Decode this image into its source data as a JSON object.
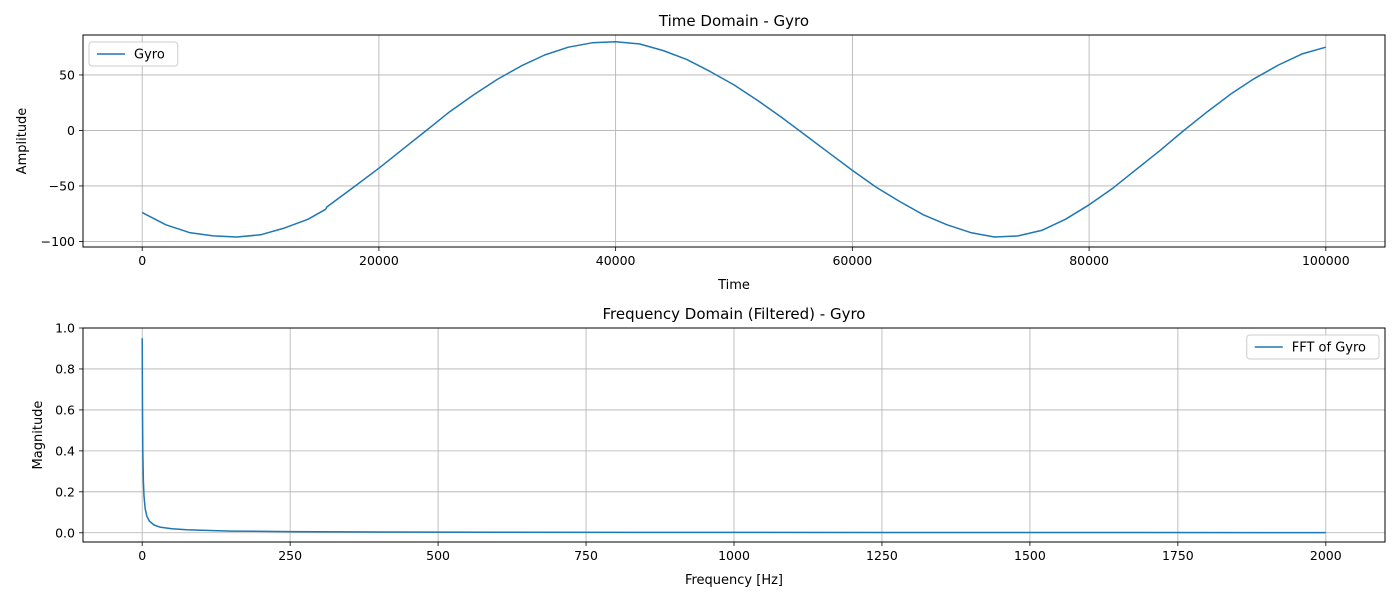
{
  "chart_data": [
    {
      "type": "line",
      "title": "Time Domain - Gyro",
      "xlabel": "Time",
      "ylabel": "Amplitude",
      "xlim": [
        -5000,
        105000
      ],
      "ylim": [
        -105,
        86
      ],
      "xticks": [
        0,
        20000,
        40000,
        60000,
        80000,
        100000
      ],
      "xtick_labels": [
        "0",
        "20000",
        "40000",
        "60000",
        "80000",
        "100000"
      ],
      "yticks": [
        -100,
        -50,
        0,
        50
      ],
      "ytick_labels": [
        "−100",
        "−50",
        "0",
        "50"
      ],
      "grid": true,
      "legend_position": "upper-left",
      "series": [
        {
          "name": "Gyro",
          "color": "#1f77b4",
          "x": [
            0,
            2000,
            4000,
            6000,
            8000,
            10000,
            12000,
            14000,
            15500,
            15600,
            18000,
            20000,
            22000,
            24000,
            26000,
            28000,
            30000,
            32000,
            34000,
            36000,
            38000,
            40000,
            42000,
            44000,
            46000,
            48000,
            50000,
            52000,
            54000,
            56000,
            58000,
            60000,
            62000,
            64000,
            66000,
            68000,
            70000,
            72000,
            74000,
            76000,
            78000,
            80000,
            82000,
            84000,
            86000,
            88000,
            90000,
            92000,
            94000,
            96000,
            98000,
            100000
          ],
          "y": [
            -74,
            -85,
            -92,
            -95,
            -96,
            -94,
            -88,
            -80,
            -71,
            -69,
            -50,
            -34,
            -17,
            0,
            17,
            32,
            46,
            58,
            68,
            75,
            79,
            80,
            78,
            72,
            64,
            53,
            41,
            27,
            12,
            -4,
            -20,
            -36,
            -51,
            -64,
            -76,
            -85,
            -92,
            -96,
            -95,
            -90,
            -80,
            -67,
            -52,
            -35,
            -18,
            0,
            17,
            33,
            47,
            59,
            69,
            75
          ]
        }
      ]
    },
    {
      "type": "line",
      "title": "Frequency Domain (Filtered) - Gyro",
      "xlabel": "Frequency [Hz]",
      "ylabel": "Magnitude",
      "xlim": [
        -100,
        2100
      ],
      "ylim": [
        -0.045,
        1.0
      ],
      "xticks": [
        0,
        250,
        500,
        750,
        1000,
        1250,
        1500,
        1750,
        2000
      ],
      "xtick_labels": [
        "0",
        "250",
        "500",
        "750",
        "1000",
        "1250",
        "1500",
        "1750",
        "2000"
      ],
      "yticks": [
        0.0,
        0.2,
        0.4,
        0.6,
        0.8,
        1.0
      ],
      "ytick_labels": [
        "0.0",
        "0.2",
        "0.4",
        "0.6",
        "0.8",
        "1.0"
      ],
      "grid": true,
      "legend_position": "upper-right",
      "series": [
        {
          "name": "FFT of Gyro",
          "color": "#1f77b4",
          "x": [
            0,
            0.5,
            1,
            2,
            3,
            5,
            8,
            12,
            20,
            30,
            50,
            75,
            100,
            150,
            250,
            400,
            600,
            1000,
            1500,
            2000
          ],
          "y": [
            0.95,
            0.6,
            0.4,
            0.25,
            0.18,
            0.12,
            0.08,
            0.058,
            0.038,
            0.028,
            0.02,
            0.015,
            0.012,
            0.008,
            0.006,
            0.004,
            0.003,
            0.002,
            0.0015,
            0.001
          ]
        }
      ]
    }
  ]
}
